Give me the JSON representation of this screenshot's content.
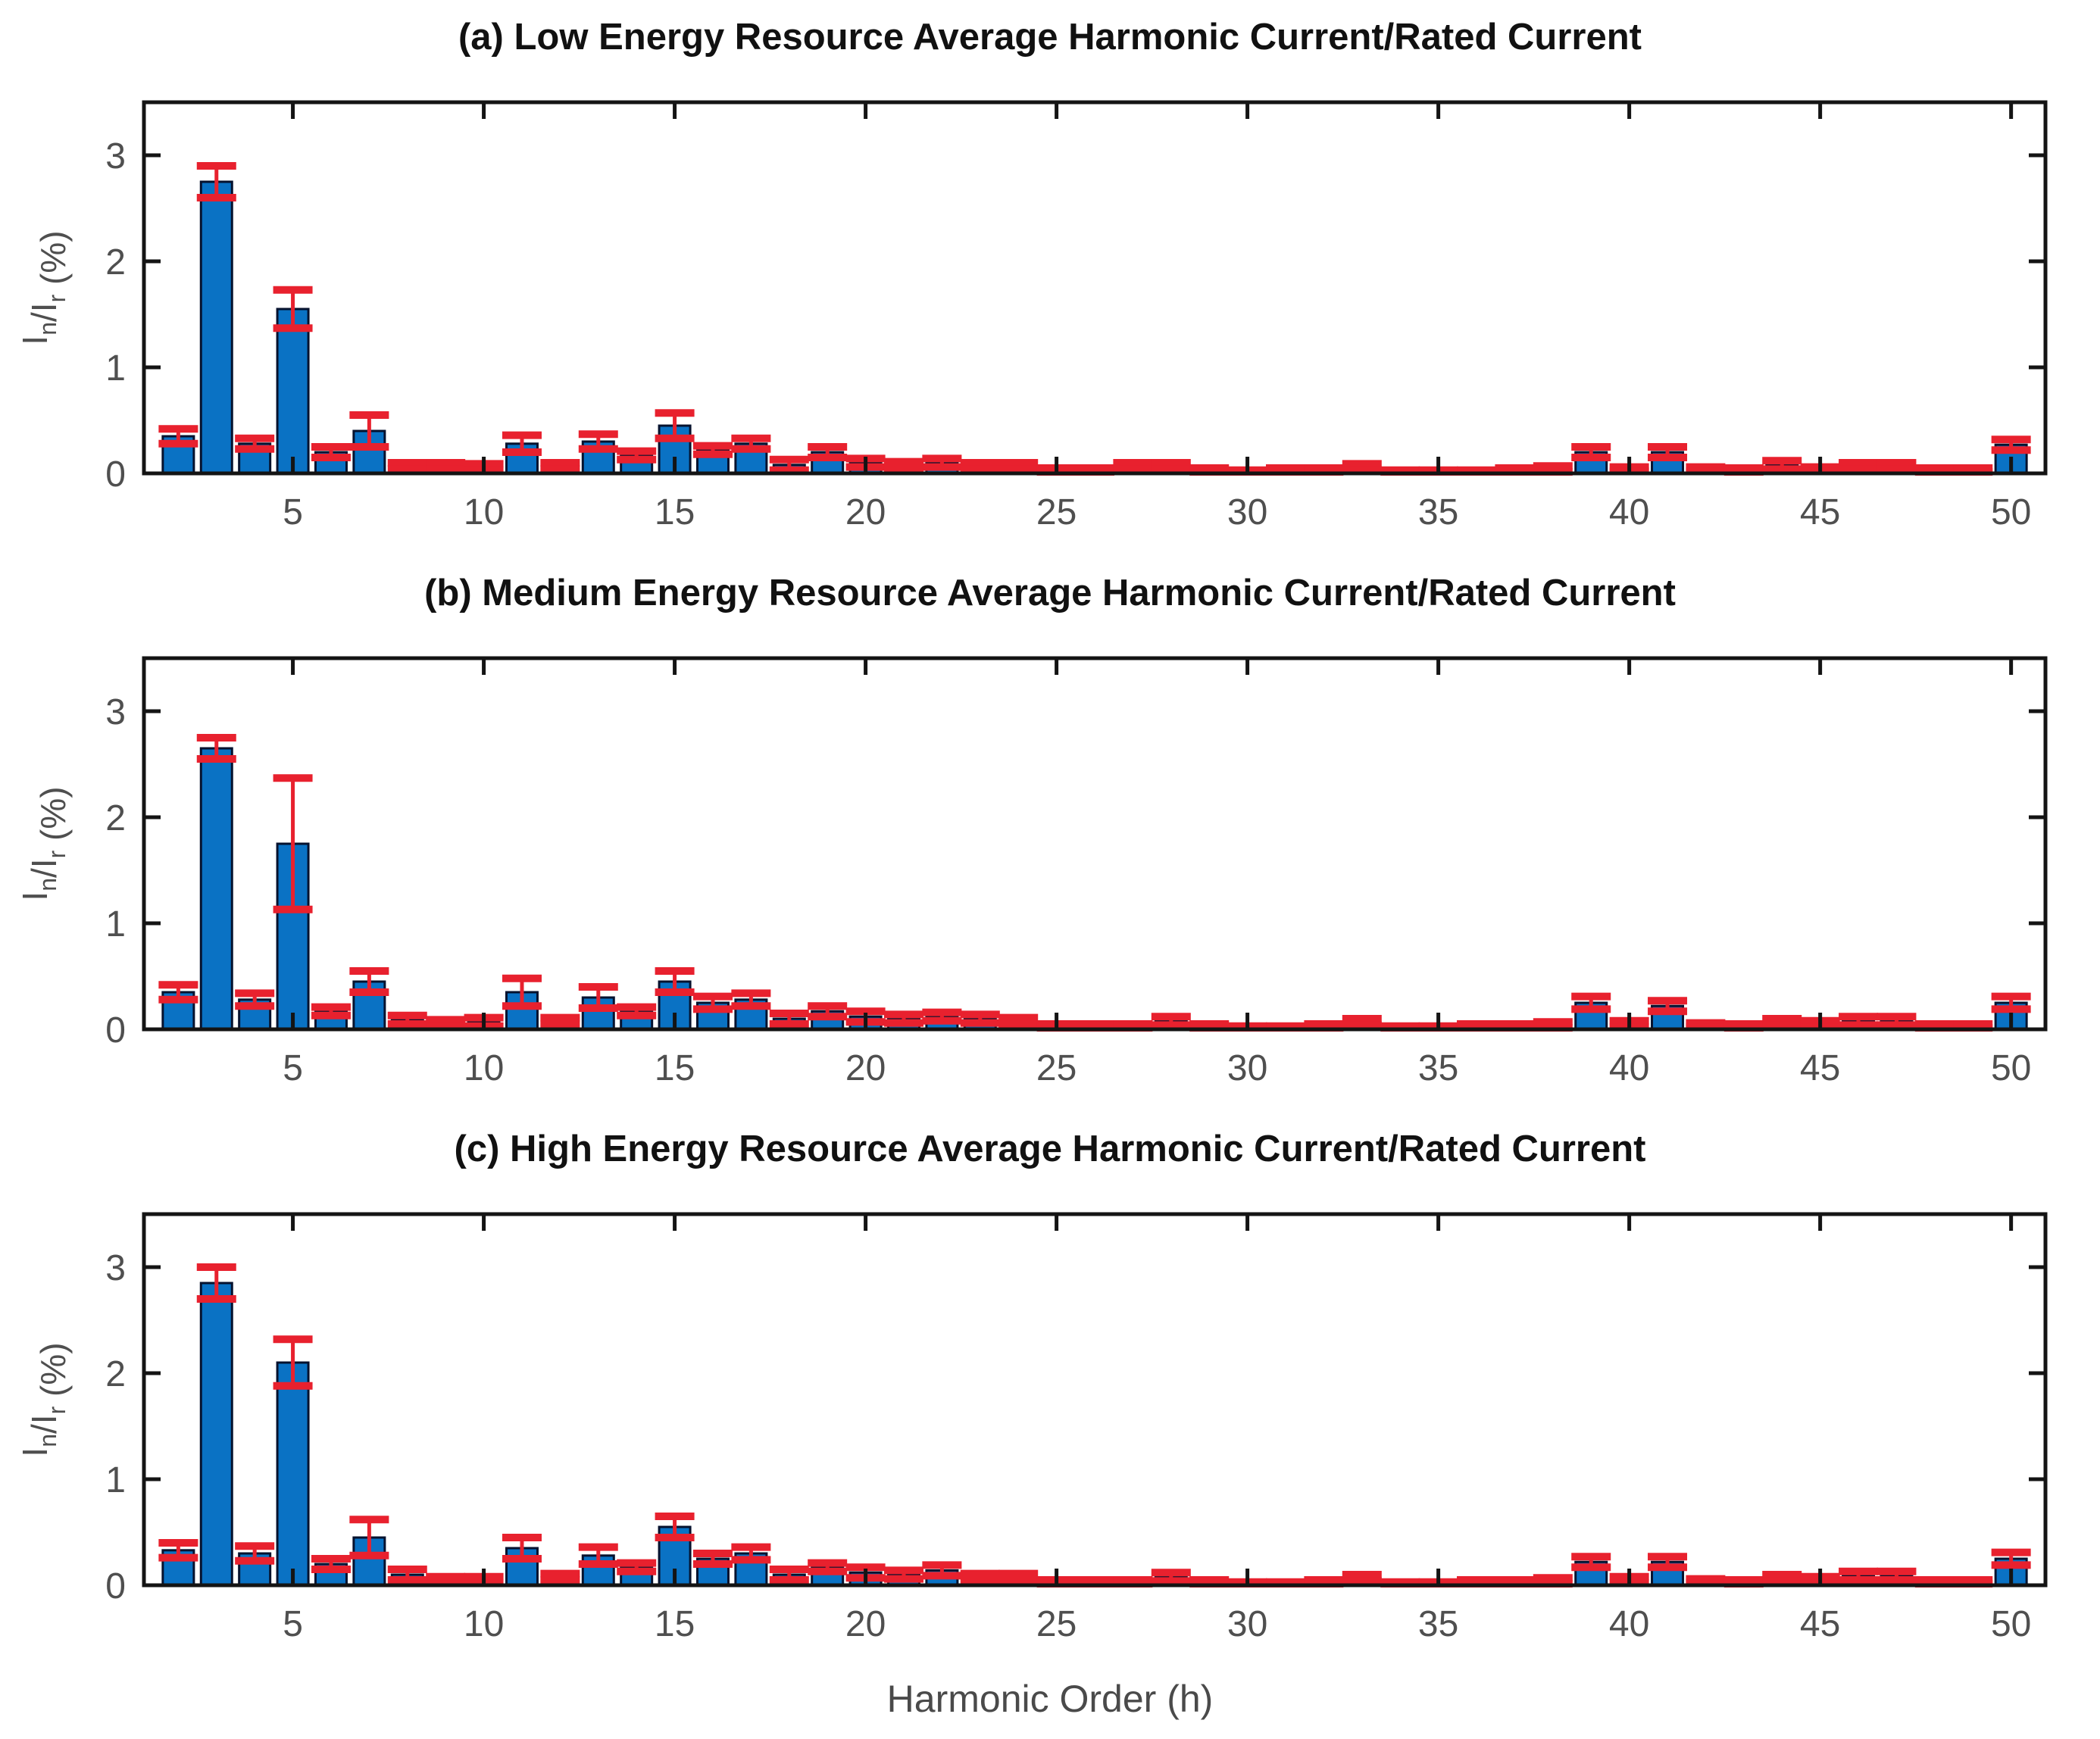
{
  "figure": {
    "xlabel": "Harmonic Order (h)",
    "ylabel": "I_n/I_r (%)",
    "ylabel_rich": [
      {
        "t": "I"
      },
      {
        "t": "n",
        "sub": true
      },
      {
        "t": "/I"
      },
      {
        "t": "r",
        "sub": true
      },
      {
        "t": " (%)"
      }
    ],
    "yticks": [
      0,
      1,
      2,
      3
    ],
    "xticks": [
      5,
      10,
      15,
      20,
      25,
      30,
      35,
      40,
      45,
      50
    ],
    "ylim": [
      0,
      3.5
    ],
    "xlim": [
      1.1,
      50.9
    ],
    "grid": false,
    "colors": {
      "bar_fill": "#0a72c4",
      "bar_edge": "#06122e",
      "error": "#e8212e",
      "axis": "#141414",
      "tick_label": "#4f4f4f",
      "title": "#111111",
      "background": "#ffffff"
    }
  },
  "chart_data": [
    {
      "type": "bar",
      "title": "(a) Low Energy Resource Average Harmonic Current/Rated Current",
      "xlabel": "",
      "ylabel": "I_n/I_r (%)",
      "x": [
        2,
        3,
        4,
        5,
        6,
        7,
        8,
        9,
        10,
        11,
        12,
        13,
        14,
        15,
        16,
        17,
        18,
        19,
        20,
        21,
        22,
        23,
        24,
        25,
        26,
        27,
        28,
        29,
        30,
        31,
        32,
        33,
        34,
        35,
        36,
        37,
        38,
        39,
        40,
        41,
        42,
        43,
        44,
        45,
        46,
        47,
        48,
        49,
        50
      ],
      "values": [
        0.35,
        2.75,
        0.28,
        1.55,
        0.2,
        0.4,
        0.07,
        0.07,
        0.06,
        0.28,
        0.07,
        0.3,
        0.17,
        0.45,
        0.22,
        0.28,
        0.08,
        0.2,
        0.1,
        0.08,
        0.1,
        0.07,
        0.07,
        0.03,
        0.03,
        0.07,
        0.07,
        0.03,
        0.02,
        0.03,
        0.03,
        0.06,
        0.02,
        0.02,
        0.02,
        0.03,
        0.04,
        0.2,
        0.04,
        0.2,
        0.04,
        0.03,
        0.08,
        0.04,
        0.07,
        0.07,
        0.03,
        0.03,
        0.27
      ],
      "errors": [
        0.07,
        0.15,
        0.05,
        0.18,
        0.05,
        0.15,
        0.03,
        0.03,
        0.03,
        0.08,
        0.03,
        0.07,
        0.04,
        0.12,
        0.04,
        0.05,
        0.05,
        0.05,
        0.04,
        0.03,
        0.04,
        0.03,
        0.03,
        0.02,
        0.02,
        0.03,
        0.03,
        0.02,
        0.01,
        0.02,
        0.02,
        0.03,
        0.01,
        0.01,
        0.01,
        0.02,
        0.03,
        0.05,
        0.02,
        0.05,
        0.02,
        0.02,
        0.04,
        0.02,
        0.03,
        0.03,
        0.02,
        0.02,
        0.05
      ],
      "ylim": [
        0,
        3.5
      ]
    },
    {
      "type": "bar",
      "title": "(b) Medium Energy Resource Average Harmonic Current/Rated Current",
      "xlabel": "",
      "ylabel": "I_n/I_r (%)",
      "x": [
        2,
        3,
        4,
        5,
        6,
        7,
        8,
        9,
        10,
        11,
        12,
        13,
        14,
        15,
        16,
        17,
        18,
        19,
        20,
        21,
        22,
        23,
        24,
        25,
        26,
        27,
        28,
        29,
        30,
        31,
        32,
        33,
        34,
        35,
        36,
        37,
        38,
        39,
        40,
        41,
        42,
        43,
        44,
        45,
        46,
        47,
        48,
        49,
        50
      ],
      "values": [
        0.35,
        2.65,
        0.28,
        1.75,
        0.17,
        0.45,
        0.09,
        0.06,
        0.07,
        0.35,
        0.08,
        0.3,
        0.17,
        0.45,
        0.25,
        0.28,
        0.1,
        0.17,
        0.12,
        0.1,
        0.12,
        0.1,
        0.08,
        0.03,
        0.03,
        0.03,
        0.08,
        0.03,
        0.02,
        0.02,
        0.03,
        0.07,
        0.02,
        0.02,
        0.03,
        0.03,
        0.04,
        0.25,
        0.05,
        0.22,
        0.04,
        0.03,
        0.07,
        0.05,
        0.08,
        0.08,
        0.03,
        0.03,
        0.25
      ],
      "errors": [
        0.07,
        0.1,
        0.06,
        0.62,
        0.04,
        0.1,
        0.04,
        0.03,
        0.04,
        0.13,
        0.03,
        0.1,
        0.04,
        0.1,
        0.06,
        0.06,
        0.05,
        0.05,
        0.05,
        0.04,
        0.04,
        0.04,
        0.03,
        0.02,
        0.02,
        0.02,
        0.04,
        0.02,
        0.01,
        0.01,
        0.02,
        0.03,
        0.01,
        0.01,
        0.02,
        0.02,
        0.03,
        0.06,
        0.03,
        0.05,
        0.02,
        0.02,
        0.03,
        0.03,
        0.04,
        0.04,
        0.02,
        0.02,
        0.06
      ],
      "ylim": [
        0,
        3.5
      ]
    },
    {
      "type": "bar",
      "title": "(c) High Energy Resource Average Harmonic Current/Rated Current",
      "xlabel": "Harmonic Order (h)",
      "ylabel": "I_n/I_r (%)",
      "x": [
        2,
        3,
        4,
        5,
        6,
        7,
        8,
        9,
        10,
        11,
        12,
        13,
        14,
        15,
        16,
        17,
        18,
        19,
        20,
        21,
        22,
        23,
        24,
        25,
        26,
        27,
        28,
        29,
        30,
        31,
        32,
        33,
        34,
        35,
        36,
        37,
        38,
        39,
        40,
        41,
        42,
        43,
        44,
        45,
        46,
        47,
        48,
        49,
        50
      ],
      "values": [
        0.33,
        2.85,
        0.3,
        2.1,
        0.2,
        0.45,
        0.1,
        0.05,
        0.05,
        0.35,
        0.08,
        0.28,
        0.17,
        0.55,
        0.25,
        0.3,
        0.1,
        0.17,
        0.12,
        0.1,
        0.14,
        0.08,
        0.08,
        0.03,
        0.03,
        0.03,
        0.08,
        0.03,
        0.02,
        0.02,
        0.03,
        0.07,
        0.02,
        0.02,
        0.03,
        0.03,
        0.04,
        0.22,
        0.05,
        0.22,
        0.04,
        0.03,
        0.07,
        0.05,
        0.09,
        0.09,
        0.03,
        0.03,
        0.25
      ],
      "errors": [
        0.07,
        0.15,
        0.07,
        0.22,
        0.05,
        0.17,
        0.05,
        0.03,
        0.03,
        0.1,
        0.03,
        0.08,
        0.04,
        0.1,
        0.05,
        0.06,
        0.05,
        0.04,
        0.05,
        0.04,
        0.05,
        0.03,
        0.03,
        0.02,
        0.02,
        0.02,
        0.04,
        0.02,
        0.01,
        0.01,
        0.02,
        0.03,
        0.01,
        0.01,
        0.02,
        0.02,
        0.03,
        0.05,
        0.03,
        0.05,
        0.02,
        0.02,
        0.03,
        0.03,
        0.04,
        0.04,
        0.02,
        0.02,
        0.06
      ],
      "ylim": [
        0,
        3.5
      ]
    }
  ]
}
